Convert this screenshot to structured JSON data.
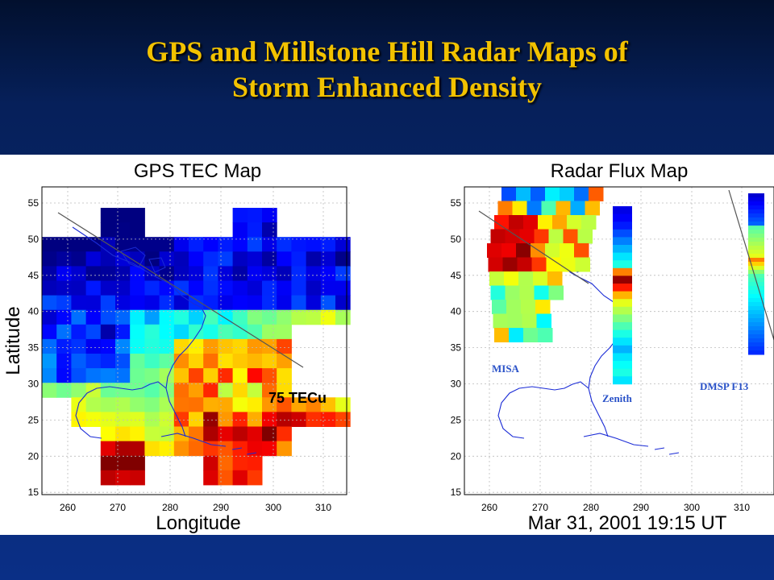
{
  "slide": {
    "title_line1": "GPS and Millstone Hill Radar Maps of",
    "title_line2": "Storm Enhanced Density"
  },
  "left_map": {
    "title": "GPS TEC Map",
    "xlabel": "Longitude",
    "ylabel": "Latitude",
    "annotation": "75 TECu",
    "lat_ticks": [
      "55",
      "50",
      "45",
      "40",
      "35",
      "30",
      "25",
      "20",
      "15"
    ],
    "lon_ticks": [
      "260",
      "270",
      "280",
      "290",
      "300",
      "310"
    ]
  },
  "right_map": {
    "title": "Radar Flux Map",
    "lat_ticks": [
      "55",
      "50",
      "45",
      "40",
      "35",
      "30",
      "25",
      "20",
      "15"
    ],
    "lon_ticks": [
      "260",
      "270",
      "280",
      "290",
      "300",
      "310"
    ],
    "labels": {
      "misa": "MISA",
      "zenith": "Zenith",
      "dmsp": "DMSP F13"
    }
  },
  "timestamp": "Mar 31, 2001 19:15 UT",
  "colors": {
    "title": "#f2c200",
    "background": "#0a2f86",
    "coast": "#1a2bd6",
    "label_blue": "#2a52c8"
  }
}
